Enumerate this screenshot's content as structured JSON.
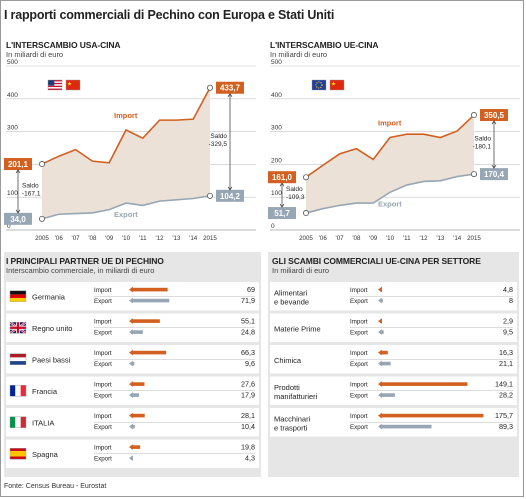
{
  "title": "I rapporti commerciali di Pechino con Europa e Stati Uniti",
  "source": "Fonte: Census Bureau - Eurostat",
  "colors": {
    "import": "#d35f20",
    "export": "#97a6b4",
    "panel": "#e6e6e6"
  },
  "usa_chart": {
    "heading": "L'INTERSCAMBIO USA-CINA",
    "unit": "In miliardi di euro",
    "flags": [
      "usa-flag",
      "china-flag"
    ],
    "import_label": "Import",
    "export_label": "Export",
    "start_import_label": "201,1",
    "end_import_label": "433,7",
    "start_export_label": "34,0",
    "end_export_label": "104,2",
    "balance_start_label": "Saldo\n-167,1",
    "balance_end_label": "Saldo\n-329,5",
    "x_tick_labels": [
      "2005",
      "'06",
      "'07",
      "'08",
      "'09",
      "'10",
      "'11",
      "'12",
      "'13",
      "'14",
      "2015"
    ],
    "y_tick_labels": [
      "0",
      "100",
      "200",
      "300",
      "400",
      "500"
    ]
  },
  "eu_chart": {
    "heading": "L'INTERSCAMBIO UE-CINA",
    "unit": "In miliardi di euro",
    "flags": [
      "eu-flag",
      "china-flag"
    ],
    "import_label": "Import",
    "export_label": "Export",
    "start_import_label": "161,0",
    "end_import_label": "350,5",
    "start_export_label": "51,7",
    "end_export_label": "170,4",
    "balance_start_label": "Saldo\n-109,3",
    "balance_end_label": "Saldo\n-180,1",
    "x_tick_labels": [
      "2005",
      "'06",
      "'07",
      "'08",
      "'09",
      "'10",
      "'11",
      "'12",
      "'13",
      "'14",
      "2015"
    ],
    "y_tick_labels": [
      "0",
      "100",
      "200",
      "300",
      "400",
      "500"
    ]
  },
  "chart_data": [
    {
      "type": "area",
      "title": "L'INTERSCAMBIO USA-CINA",
      "subtitle": "In miliardi di euro",
      "x": [
        2005,
        2006,
        2007,
        2008,
        2009,
        2010,
        2011,
        2012,
        2013,
        2014,
        2015
      ],
      "ylim": [
        0,
        500
      ],
      "series": [
        {
          "name": "Import",
          "values": [
            201.1,
            225,
            245,
            210,
            205,
            305,
            280,
            335,
            335,
            338,
            433.7
          ]
        },
        {
          "name": "Export",
          "values": [
            34.0,
            48,
            50,
            52,
            62,
            82,
            75,
            88,
            92,
            96,
            104.2
          ]
        }
      ]
    },
    {
      "type": "area",
      "title": "L'INTERSCAMBIO UE-CINA",
      "subtitle": "In miliardi di euro",
      "x": [
        2005,
        2006,
        2007,
        2008,
        2009,
        2010,
        2011,
        2012,
        2013,
        2014,
        2015
      ],
      "ylim": [
        0,
        500
      ],
      "series": [
        {
          "name": "Import",
          "values": [
            161.0,
            197,
            232,
            248,
            215,
            282,
            292,
            292,
            282,
            302,
            350.5
          ]
        },
        {
          "name": "Export",
          "values": [
            51.7,
            65,
            75,
            82,
            82,
            115,
            137,
            148,
            150,
            163,
            170.4
          ]
        }
      ]
    },
    {
      "type": "bar",
      "title": "I PRINCIPALI PARTNER UE DI PECHINO",
      "subtitle": "Interscambio commerciale, in miliardi di euro",
      "categories": [
        "Germania",
        "Regno unito",
        "Paesi bassi",
        "Francia",
        "ITALIA",
        "Spagna"
      ],
      "flags": [
        "germany-flag",
        "uk-flag",
        "netherlands-flag",
        "france-flag",
        "italy-flag",
        "spain-flag"
      ],
      "series": [
        {
          "name": "Import",
          "values": [
            69,
            55.1,
            66.3,
            27.6,
            28.1,
            19.8
          ],
          "labels": [
            "69",
            "55,1",
            "66,3",
            "27,6",
            "28,1",
            "19,8"
          ]
        },
        {
          "name": "Export",
          "values": [
            71.9,
            24.8,
            9.6,
            17.9,
            10.4,
            4.3
          ],
          "labels": [
            "71,9",
            "24,8",
            "9,6",
            "17,9",
            "10,4",
            "4,3"
          ]
        }
      ]
    },
    {
      "type": "bar",
      "title": "GLI SCAMBI COMMERCIALI UE-CINA PER SETTORE",
      "subtitle": "In miliardi di euro",
      "categories": [
        "Alimentari\ne bevande",
        "Materie Prime",
        "Chimica",
        "Prodotti\nmanifatturieri",
        "Macchinari\ne trasporti"
      ],
      "series": [
        {
          "name": "Import",
          "values": [
            4.8,
            2.9,
            16.3,
            149.1,
            175.7
          ],
          "labels": [
            "4,8",
            "2,9",
            "16,3",
            "149,1",
            "175,7"
          ]
        },
        {
          "name": "Export",
          "values": [
            8,
            9.5,
            21.1,
            28.2,
            89.3
          ],
          "labels": [
            "8",
            "9,5",
            "21,1",
            "28,2",
            "89,3"
          ]
        }
      ]
    }
  ]
}
